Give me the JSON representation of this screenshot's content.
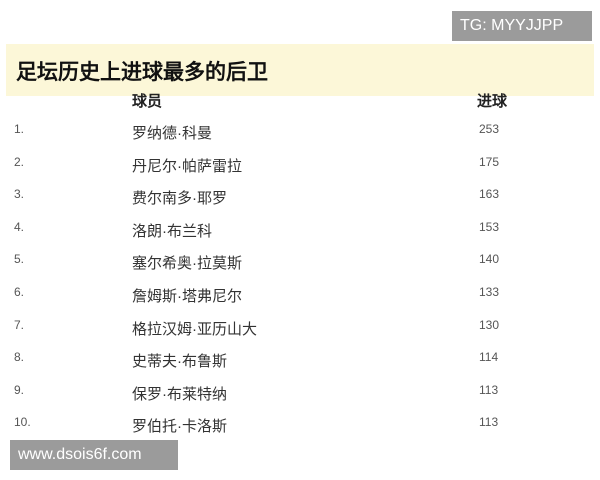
{
  "watermark_top": "TG: MYYJJPP",
  "watermark_bottom": "www.dsois6f.com",
  "title": "足坛历史上进球最多的后卫",
  "columns": {
    "player": "球员",
    "goals": "进球"
  },
  "rows": [
    {
      "rank": "1.",
      "name": "罗纳德·科曼",
      "goals": "253"
    },
    {
      "rank": "2.",
      "name": "丹尼尔·帕萨雷拉",
      "goals": "175"
    },
    {
      "rank": "3.",
      "name": "费尔南多·耶罗",
      "goals": "163"
    },
    {
      "rank": "4.",
      "name": "洛朗·布兰科",
      "goals": "153"
    },
    {
      "rank": "5.",
      "name": "塞尔希奥·拉莫斯",
      "goals": "140"
    },
    {
      "rank": "6.",
      "name": "詹姆斯·塔弗尼尔",
      "goals": "133"
    },
    {
      "rank": "7.",
      "name": "格拉汉姆·亚历山大",
      "goals": "130"
    },
    {
      "rank": "8.",
      "name": "史蒂夫·布鲁斯",
      "goals": "114"
    },
    {
      "rank": "9.",
      "name": "保罗·布莱特纳",
      "goals": "113"
    },
    {
      "rank": "10.",
      "name": "罗伯托·卡洛斯",
      "goals": "113"
    }
  ]
}
